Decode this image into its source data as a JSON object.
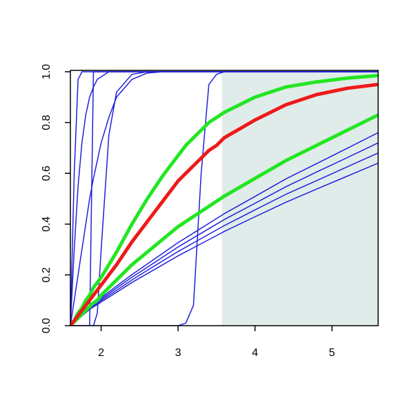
{
  "chart_data": {
    "type": "line",
    "x": [
      1.6,
      1.65,
      1.7,
      1.75,
      1.8,
      1.85,
      1.9,
      1.95,
      2.0,
      2.1,
      2.2,
      2.4,
      2.6,
      2.8,
      3.0,
      3.1,
      3.2,
      3.3,
      3.4,
      3.5,
      3.6,
      4.0,
      4.4,
      4.8,
      5.2,
      5.6
    ],
    "xlim": [
      1.6,
      5.6
    ],
    "ylim": [
      0,
      1
    ],
    "xticks": [
      2,
      3,
      4,
      5
    ],
    "yticks": [
      {
        "value": 0,
        "label": "0.0"
      },
      {
        "value": 0.2,
        "label": "0.2"
      },
      {
        "value": 0.4,
        "label": "0.4"
      },
      {
        "value": 0.6,
        "label": "0.6"
      },
      {
        "value": 0.8,
        "label": "0.8"
      },
      {
        "value": 1,
        "label": "1.0"
      }
    ],
    "shade": {
      "from": 3.57,
      "to": 5.6,
      "color": "#e0ecea"
    },
    "series": [
      {
        "color": "#1f1fdc",
        "line_width": 1.5,
        "values": [
          0,
          0.013,
          0.026,
          0.038,
          0.051,
          0.064,
          0.074,
          0.083,
          0.093,
          0.112,
          0.131,
          0.17,
          0.205,
          0.24,
          0.275,
          0.291,
          0.307,
          0.323,
          0.339,
          0.355,
          0.371,
          0.429,
          0.486,
          0.538,
          0.589,
          0.64
        ]
      },
      {
        "color": "#1f1fdc",
        "line_width": 1.5,
        "values": [
          0,
          0.014,
          0.027,
          0.041,
          0.054,
          0.068,
          0.078,
          0.088,
          0.099,
          0.119,
          0.139,
          0.18,
          0.218,
          0.255,
          0.292,
          0.309,
          0.326,
          0.343,
          0.36,
          0.377,
          0.394,
          0.456,
          0.517,
          0.571,
          0.626,
          0.68
        ]
      },
      {
        "color": "#1f1fdc",
        "line_width": 1.5,
        "values": [
          0,
          0.014,
          0.029,
          0.043,
          0.058,
          0.072,
          0.083,
          0.094,
          0.104,
          0.126,
          0.148,
          0.191,
          0.23,
          0.27,
          0.31,
          0.328,
          0.346,
          0.364,
          0.382,
          0.4,
          0.418,
          0.482,
          0.547,
          0.605,
          0.662,
          0.72
        ]
      },
      {
        "color": "#1f1fdc",
        "line_width": 1.5,
        "values": [
          0,
          0.015,
          0.03,
          0.046,
          0.061,
          0.076,
          0.087,
          0.099,
          0.11,
          0.133,
          0.156,
          0.201,
          0.243,
          0.285,
          0.327,
          0.346,
          0.365,
          0.384,
          0.403,
          0.422,
          0.441,
          0.509,
          0.578,
          0.638,
          0.699,
          0.76
        ]
      },
      {
        "color": "#1f1fdc",
        "line_width": 1.5,
        "values": [
          0,
          0.6,
          0.97,
          1,
          1,
          1,
          1,
          1,
          1,
          1,
          1,
          1,
          1,
          1,
          1,
          1,
          1,
          1,
          1,
          1,
          1,
          1,
          1,
          1,
          1,
          1
        ]
      },
      {
        "color": "#1f1fdc",
        "line_width": 1.5,
        "values": [
          0,
          0,
          0,
          0,
          0,
          0,
          1,
          1,
          1,
          1,
          1,
          1,
          1,
          1,
          1,
          1,
          1,
          1,
          1,
          1,
          1,
          1,
          1,
          1,
          1,
          1
        ]
      },
      {
        "color": "#1f1fdc",
        "line_width": 1.5,
        "values": [
          0,
          0,
          0,
          0,
          0,
          0,
          0,
          0.05,
          0.3,
          0.75,
          0.92,
          0.99,
          1,
          1,
          1,
          1,
          1,
          1,
          1,
          1,
          1,
          1,
          1,
          1,
          1,
          1
        ]
      },
      {
        "color": "#1f1fdc",
        "line_width": 1.5,
        "values": [
          0,
          0.1,
          0.2,
          0.3,
          0.4,
          0.5,
          0.58,
          0.65,
          0.72,
          0.82,
          0.9,
          0.97,
          0.995,
          1,
          1,
          1,
          1,
          1,
          1,
          1,
          1,
          1,
          1,
          1,
          1,
          1
        ]
      },
      {
        "color": "#1f1fdc",
        "line_width": 1.5,
        "values": [
          0,
          0.3,
          0.55,
          0.72,
          0.83,
          0.9,
          0.94,
          0.97,
          0.98,
          1,
          1,
          1,
          1,
          1,
          1,
          1,
          1,
          1,
          1,
          1,
          1,
          1,
          1,
          1,
          1,
          1
        ]
      },
      {
        "color": "#1f1fdc",
        "line_width": 1.5,
        "values": [
          0,
          0,
          0,
          0,
          0,
          0,
          0,
          0,
          0,
          0,
          0,
          0,
          0,
          0,
          0,
          0.01,
          0.08,
          0.6,
          0.95,
          0.99,
          1,
          1,
          1,
          1,
          1,
          1
        ]
      },
      {
        "color": "#22e622",
        "line_width": 5,
        "values": [
          0,
          0.02,
          0.05,
          0.07,
          0.1,
          0.12,
          0.15,
          0.17,
          0.19,
          0.24,
          0.29,
          0.4,
          0.5,
          0.59,
          0.67,
          0.71,
          0.74,
          0.77,
          0.8,
          0.82,
          0.84,
          0.9,
          0.94,
          0.96,
          0.975,
          0.985
        ]
      },
      {
        "color": "#22e622",
        "line_width": 5,
        "values": [
          0,
          0.015,
          0.03,
          0.045,
          0.06,
          0.075,
          0.09,
          0.1,
          0.12,
          0.15,
          0.18,
          0.24,
          0.29,
          0.34,
          0.39,
          0.41,
          0.43,
          0.45,
          0.47,
          0.49,
          0.51,
          0.58,
          0.65,
          0.71,
          0.77,
          0.83
        ]
      },
      {
        "color": "#ee1a1a",
        "line_width": 5,
        "values": [
          0,
          0.02,
          0.04,
          0.06,
          0.08,
          0.1,
          0.12,
          0.14,
          0.16,
          0.2,
          0.24,
          0.33,
          0.41,
          0.49,
          0.57,
          0.6,
          0.63,
          0.66,
          0.69,
          0.71,
          0.74,
          0.81,
          0.87,
          0.91,
          0.935,
          0.95
        ]
      }
    ]
  }
}
